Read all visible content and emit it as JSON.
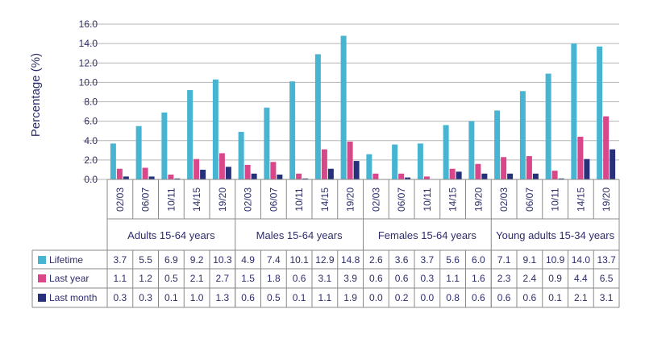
{
  "chart_data": {
    "type": "bar",
    "ylabel": "Percentage (%)",
    "ylim": [
      0,
      16
    ],
    "yticks": [
      "0.0",
      "2.0",
      "4.0",
      "6.0",
      "8.0",
      "10.0",
      "12.0",
      "14.0",
      "16.0"
    ],
    "grid": true,
    "legend": "table-below",
    "groups": [
      {
        "label": "Adults 15-64 years",
        "categories": [
          "02/03",
          "06/07",
          "10/11",
          "14/15",
          "19/20"
        ]
      },
      {
        "label": "Males 15-64 years",
        "categories": [
          "02/03",
          "06/07",
          "10/11",
          "14/15",
          "19/20"
        ]
      },
      {
        "label": "Females 15-64 years",
        "categories": [
          "02/03",
          "06/07",
          "10/11",
          "14/15",
          "19/20"
        ]
      },
      {
        "label": "Young adults 15-34 years",
        "categories": [
          "02/03",
          "06/07",
          "10/11",
          "14/15",
          "19/20"
        ]
      }
    ],
    "series": [
      {
        "name": "Lifetime",
        "color": "#47b5d1",
        "values": [
          "3.7",
          "5.5",
          "6.9",
          "9.2",
          "10.3",
          "4.9",
          "7.4",
          "10.1",
          "12.9",
          "14.8",
          "2.6",
          "3.6",
          "3.7",
          "5.6",
          "6.0",
          "7.1",
          "9.1",
          "10.9",
          "14.0",
          "13.7"
        ]
      },
      {
        "name": "Last year",
        "color": "#d9468a",
        "values": [
          "1.1",
          "1.2",
          "0.5",
          "2.1",
          "2.7",
          "1.5",
          "1.8",
          "0.6",
          "3.1",
          "3.9",
          "0.6",
          "0.6",
          "0.3",
          "1.1",
          "1.6",
          "2.3",
          "2.4",
          "0.9",
          "4.4",
          "6.5"
        ]
      },
      {
        "name": "Last month",
        "color": "#27307a",
        "values": [
          "0.3",
          "0.3",
          "0.1",
          "1.0",
          "1.3",
          "0.6",
          "0.5",
          "0.1",
          "1.1",
          "1.9",
          "0.0",
          "0.2",
          "0.0",
          "0.8",
          "0.6",
          "0.6",
          "0.6",
          "0.1",
          "2.1",
          "3.1"
        ]
      }
    ]
  }
}
